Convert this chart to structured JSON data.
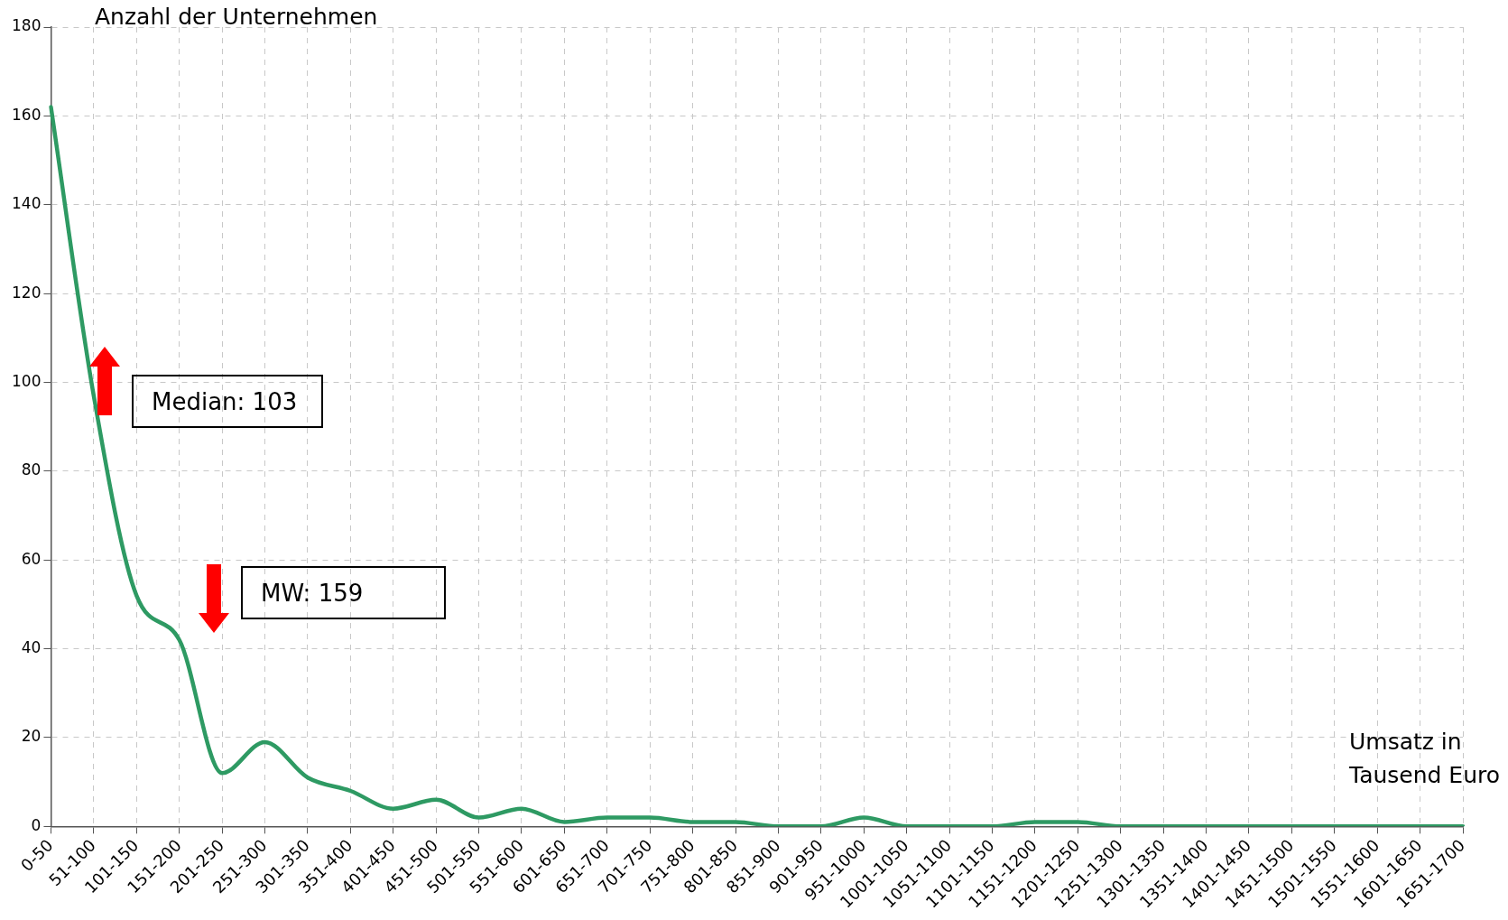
{
  "chart_data": {
    "type": "line",
    "ylabel": "Anzahl der Unternehmen",
    "xlabel": "Umsatz in Tausend Euro",
    "categories": [
      "0-50",
      "51-100",
      "101-150",
      "151-200",
      "201-250",
      "251-300",
      "301-350",
      "351-400",
      "401-450",
      "451-500",
      "501-550",
      "551-600",
      "601-650",
      "651-700",
      "701-750",
      "751-800",
      "801-850",
      "851-900",
      "901-950",
      "951-1000",
      "1001-1050",
      "1051-1100",
      "1101-1150",
      "1151-1200",
      "1201-1250",
      "1251-1300",
      "1301-1350",
      "1351-1400",
      "1401-1450",
      "1451-1500",
      "1501-1550",
      "1551-1600",
      "1601-1650",
      "1651-1700"
    ],
    "series": [
      {
        "color": "#2e9a63",
        "values": [
          162,
          97,
          52,
          42,
          12,
          19,
          11,
          8,
          4,
          6,
          2,
          4,
          1,
          2,
          2,
          1,
          1,
          0,
          0,
          2,
          0,
          0,
          0,
          1,
          1,
          0,
          0,
          0,
          0,
          0,
          0,
          0,
          0,
          0
        ]
      }
    ],
    "ylim": [
      0,
      180
    ],
    "yticks": [
      0,
      20,
      40,
      60,
      80,
      100,
      120,
      140,
      160,
      180
    ],
    "grid": true,
    "marker": "none",
    "line_style": "solid",
    "annotations": [
      "Median: 103",
      "MW: 159"
    ]
  }
}
